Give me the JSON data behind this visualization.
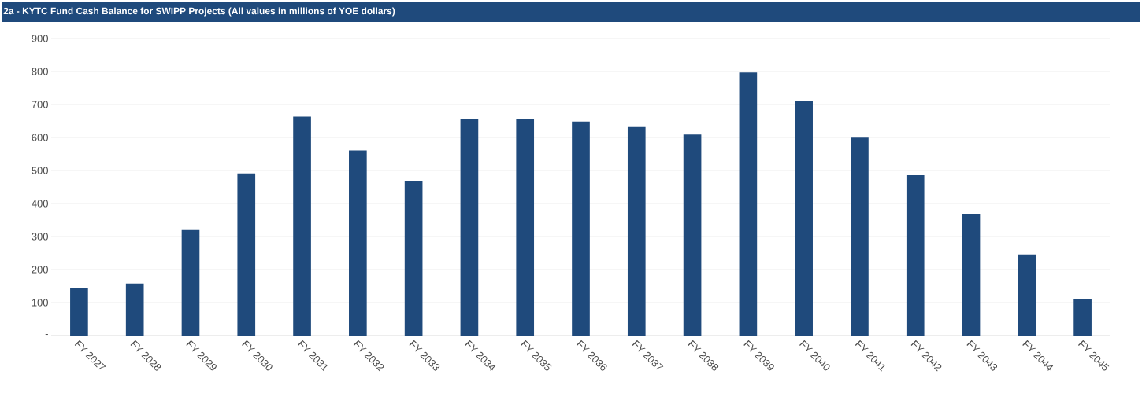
{
  "chart_data": {
    "type": "bar",
    "title": "2a - KYTC Fund Cash Balance for SWIPP Projects (All values in millions of YOE dollars)",
    "categories": [
      "FY 2027",
      "FY 2028",
      "FY 2029",
      "FY 2030",
      "FY 2031",
      "FY 2032",
      "FY 2033",
      "FY 2034",
      "FY 2035",
      "FY 2036",
      "FY 2037",
      "FY 2038",
      "FY 2039",
      "FY 2040",
      "FY 2041",
      "FY 2042",
      "FY 2043",
      "FY 2044",
      "FY 2045"
    ],
    "values": [
      144,
      158,
      322,
      491,
      663,
      561,
      469,
      656,
      656,
      648,
      634,
      609,
      797,
      712,
      602,
      486,
      369,
      246,
      111
    ],
    "color": "#1f4a7c",
    "ylim": [
      0,
      900
    ],
    "yticks": [
      {
        "value": 0,
        "label": "-"
      },
      100,
      200,
      300,
      400,
      500,
      600,
      700,
      800,
      900
    ],
    "grid": "y"
  }
}
